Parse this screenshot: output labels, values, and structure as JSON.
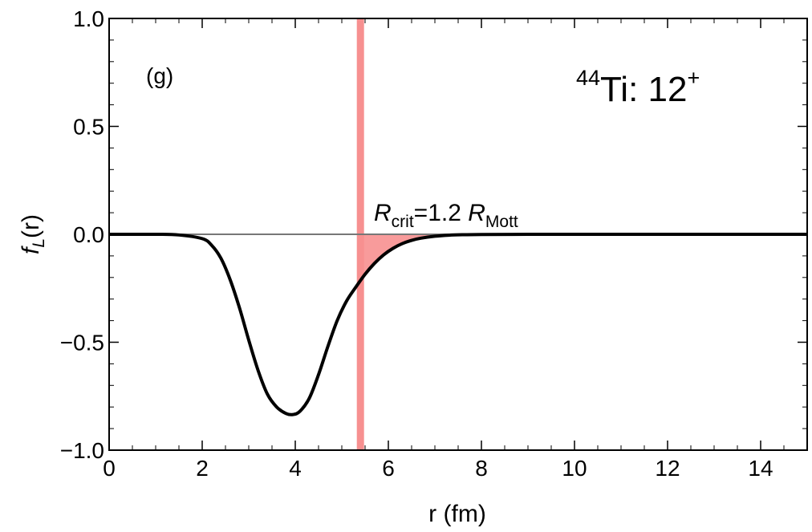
{
  "chart_data": {
    "type": "line",
    "panel_label": "(g)",
    "nucleus_label": {
      "mass_number": "44",
      "element": "Ti: 12",
      "superscript": "+"
    },
    "xlabel": "r (fm)",
    "ylabel": {
      "f": "f",
      "sub": "L",
      "arg": "(r)"
    },
    "xlim": [
      0,
      15
    ],
    "ylim": [
      -1.0,
      1.0
    ],
    "x_ticks": [
      0,
      2,
      4,
      6,
      8,
      10,
      12,
      14
    ],
    "x_tick_labels": [
      "0",
      "2",
      "4",
      "6",
      "8",
      "10",
      "12",
      "14"
    ],
    "y_ticks": [
      -1.0,
      -0.5,
      0.0,
      0.5,
      1.0
    ],
    "y_tick_labels": [
      "−1.0",
      "−0.5",
      "0.0",
      "0.5",
      "1.0"
    ],
    "series": [
      {
        "name": "f_L(r)",
        "color": "#000000",
        "x": [
          0,
          1.0,
          1.5,
          2.0,
          2.2,
          2.4,
          2.6,
          2.8,
          3.0,
          3.2,
          3.4,
          3.6,
          3.8,
          3.95,
          4.1,
          4.3,
          4.5,
          4.7,
          4.9,
          5.1,
          5.3,
          5.5,
          5.7,
          5.9,
          6.1,
          6.3,
          6.5,
          6.7,
          7.0,
          7.3,
          7.6,
          8.0,
          9.0,
          10.0,
          15.0
        ],
        "y": [
          0,
          0,
          -0.003,
          -0.02,
          -0.05,
          -0.11,
          -0.21,
          -0.34,
          -0.49,
          -0.63,
          -0.74,
          -0.8,
          -0.83,
          -0.835,
          -0.82,
          -0.76,
          -0.65,
          -0.52,
          -0.4,
          -0.31,
          -0.245,
          -0.185,
          -0.135,
          -0.095,
          -0.065,
          -0.043,
          -0.028,
          -0.018,
          -0.009,
          -0.004,
          -0.002,
          -0.001,
          0,
          0,
          0
        ]
      }
    ],
    "zero_line": {
      "y": 0,
      "color": "#777777"
    },
    "critical_line": {
      "x": 5.4,
      "color": "#f79090",
      "label": {
        "R": "R",
        "crit": "crit",
        "eq": "=1.2 ",
        "R2": "R",
        "mott": "Mott"
      }
    },
    "shaded_region": {
      "from_x": 5.4,
      "to_x": 8.0,
      "color": "#f79090"
    }
  }
}
